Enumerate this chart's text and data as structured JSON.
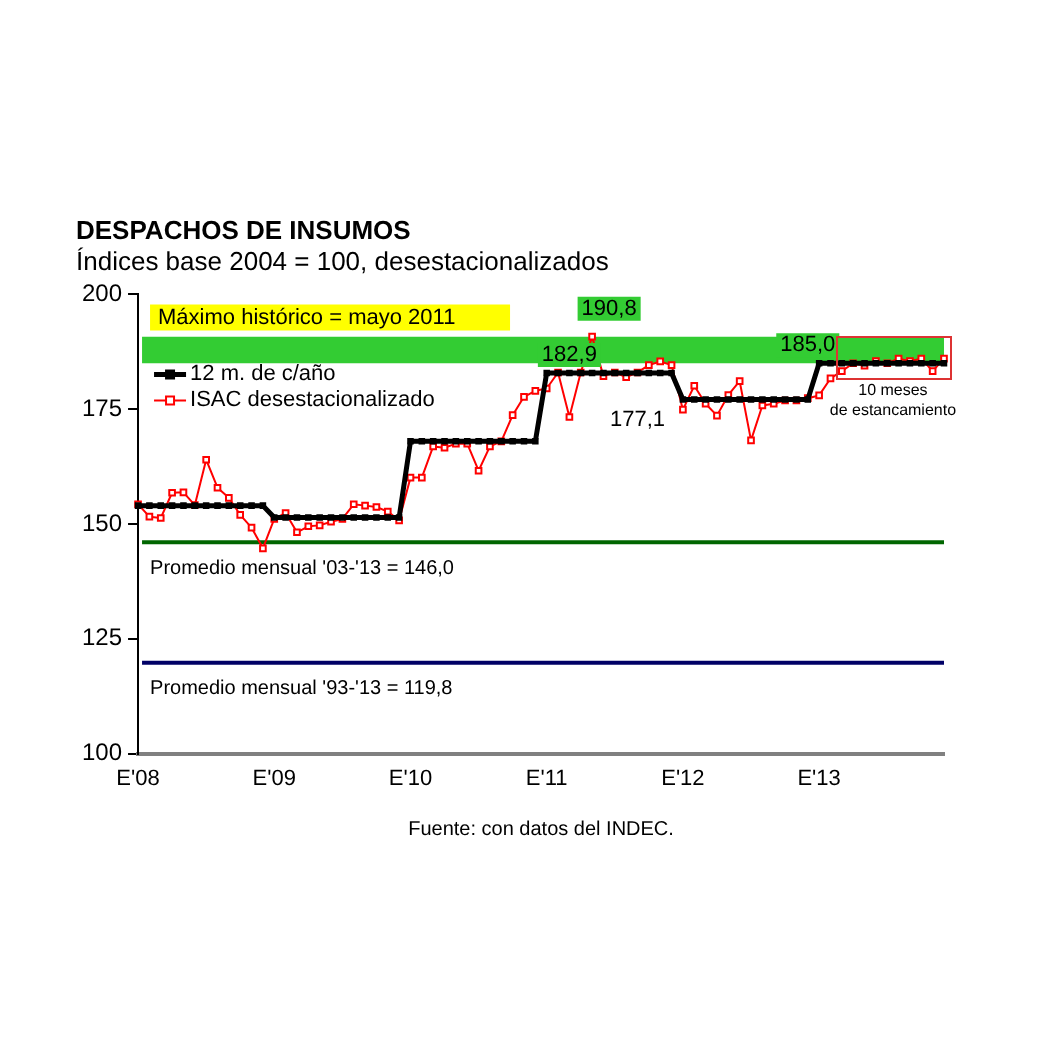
{
  "chart_data": {
    "type": "line",
    "title": "DESPACHOS DE INSUMOS",
    "subtitle": "Índices base 2004 = 100, desestacionalizados",
    "categories": [
      "E'08",
      null,
      null,
      null,
      null,
      null,
      null,
      null,
      null,
      null,
      null,
      null,
      "E'09",
      null,
      null,
      null,
      null,
      null,
      null,
      null,
      null,
      null,
      null,
      null,
      "E'10",
      null,
      null,
      null,
      null,
      null,
      null,
      null,
      null,
      null,
      null,
      null,
      "E'11",
      null,
      null,
      null,
      null,
      null,
      null,
      null,
      null,
      null,
      null,
      null,
      "E'12",
      null,
      null,
      null,
      null,
      null,
      null,
      null,
      null,
      null,
      null,
      null,
      "E'13",
      null,
      null,
      null,
      null,
      null,
      null,
      null,
      null,
      null,
      null,
      null
    ],
    "series": [
      {
        "name": "12 m. de c/año",
        "color": "#000000",
        "values": [
          154.0,
          154.0,
          154.0,
          154.0,
          154.0,
          154.0,
          154.0,
          154.0,
          154.0,
          154.0,
          154.0,
          154.0,
          151.4,
          151.4,
          151.4,
          151.4,
          151.4,
          151.4,
          151.4,
          151.4,
          151.4,
          151.4,
          151.4,
          151.4,
          168.0,
          168.0,
          168.0,
          168.0,
          168.0,
          168.0,
          168.0,
          168.0,
          168.0,
          168.0,
          168.0,
          168.0,
          182.9,
          182.9,
          182.9,
          182.9,
          182.9,
          182.9,
          182.9,
          182.9,
          182.9,
          182.9,
          182.9,
          182.9,
          177.1,
          177.1,
          177.1,
          177.1,
          177.1,
          177.1,
          177.1,
          177.1,
          177.1,
          177.1,
          177.1,
          177.1,
          185.0,
          185.0,
          185.0,
          185.0,
          185.0,
          185.0,
          185.0,
          185.0,
          185.0,
          185.0,
          185.0,
          185.0
        ]
      },
      {
        "name": "ISAC desestacionalizado",
        "color": "#ff0000",
        "values": [
          154.3,
          151.6,
          151.3,
          156.8,
          156.9,
          154.1,
          164.0,
          157.9,
          155.7,
          152.0,
          149.2,
          144.7,
          151.1,
          152.4,
          148.2,
          149.5,
          149.7,
          150.5,
          151.1,
          154.3,
          154.0,
          153.7,
          152.7,
          150.8,
          160.1,
          160.1,
          166.9,
          166.6,
          167.5,
          167.5,
          161.6,
          166.9,
          168.0,
          173.7,
          177.7,
          179.0,
          179.5,
          183.0,
          173.3,
          183.0,
          190.8,
          182.2,
          183.0,
          182.0,
          183.0,
          184.6,
          185.4,
          184.6,
          174.9,
          180.1,
          176.2,
          173.6,
          178.1,
          181.1,
          168.2,
          175.8,
          176.2,
          176.9,
          176.9,
          177.4,
          178.0,
          181.7,
          183.3,
          185.0,
          184.5,
          185.5,
          185.0,
          186.0,
          185.5,
          186.0,
          183.3,
          186.0
        ]
      }
    ],
    "ylim": [
      100,
      200
    ],
    "yticks": [
      100,
      125,
      150,
      175,
      200
    ],
    "grid": false,
    "legend": "top left",
    "marker": "square",
    "line_style": "solid",
    "bands": [
      {
        "axis": "y",
        "from": 185.0,
        "to": 190.8,
        "color": "#33cc33"
      }
    ],
    "ref_lines": [
      {
        "axis": "y",
        "value": 146.0,
        "label": "Promedio mensual '03-'13 = 146,0",
        "color": "#006600"
      },
      {
        "axis": "y",
        "value": 119.8,
        "label": "Promedio mensual '93-'13 = 119,8",
        "color": "#000066"
      }
    ],
    "annotations": [
      "Máximo histórico = mayo 2011",
      {
        "text": "190,8",
        "y": 190.8
      },
      {
        "text": "182,9",
        "y": 182.9
      },
      "177,1",
      {
        "text": "185,0",
        "y": 185.0
      },
      "10 meses de estancamiento",
      "Fuente: con datos del INDEC."
    ]
  }
}
